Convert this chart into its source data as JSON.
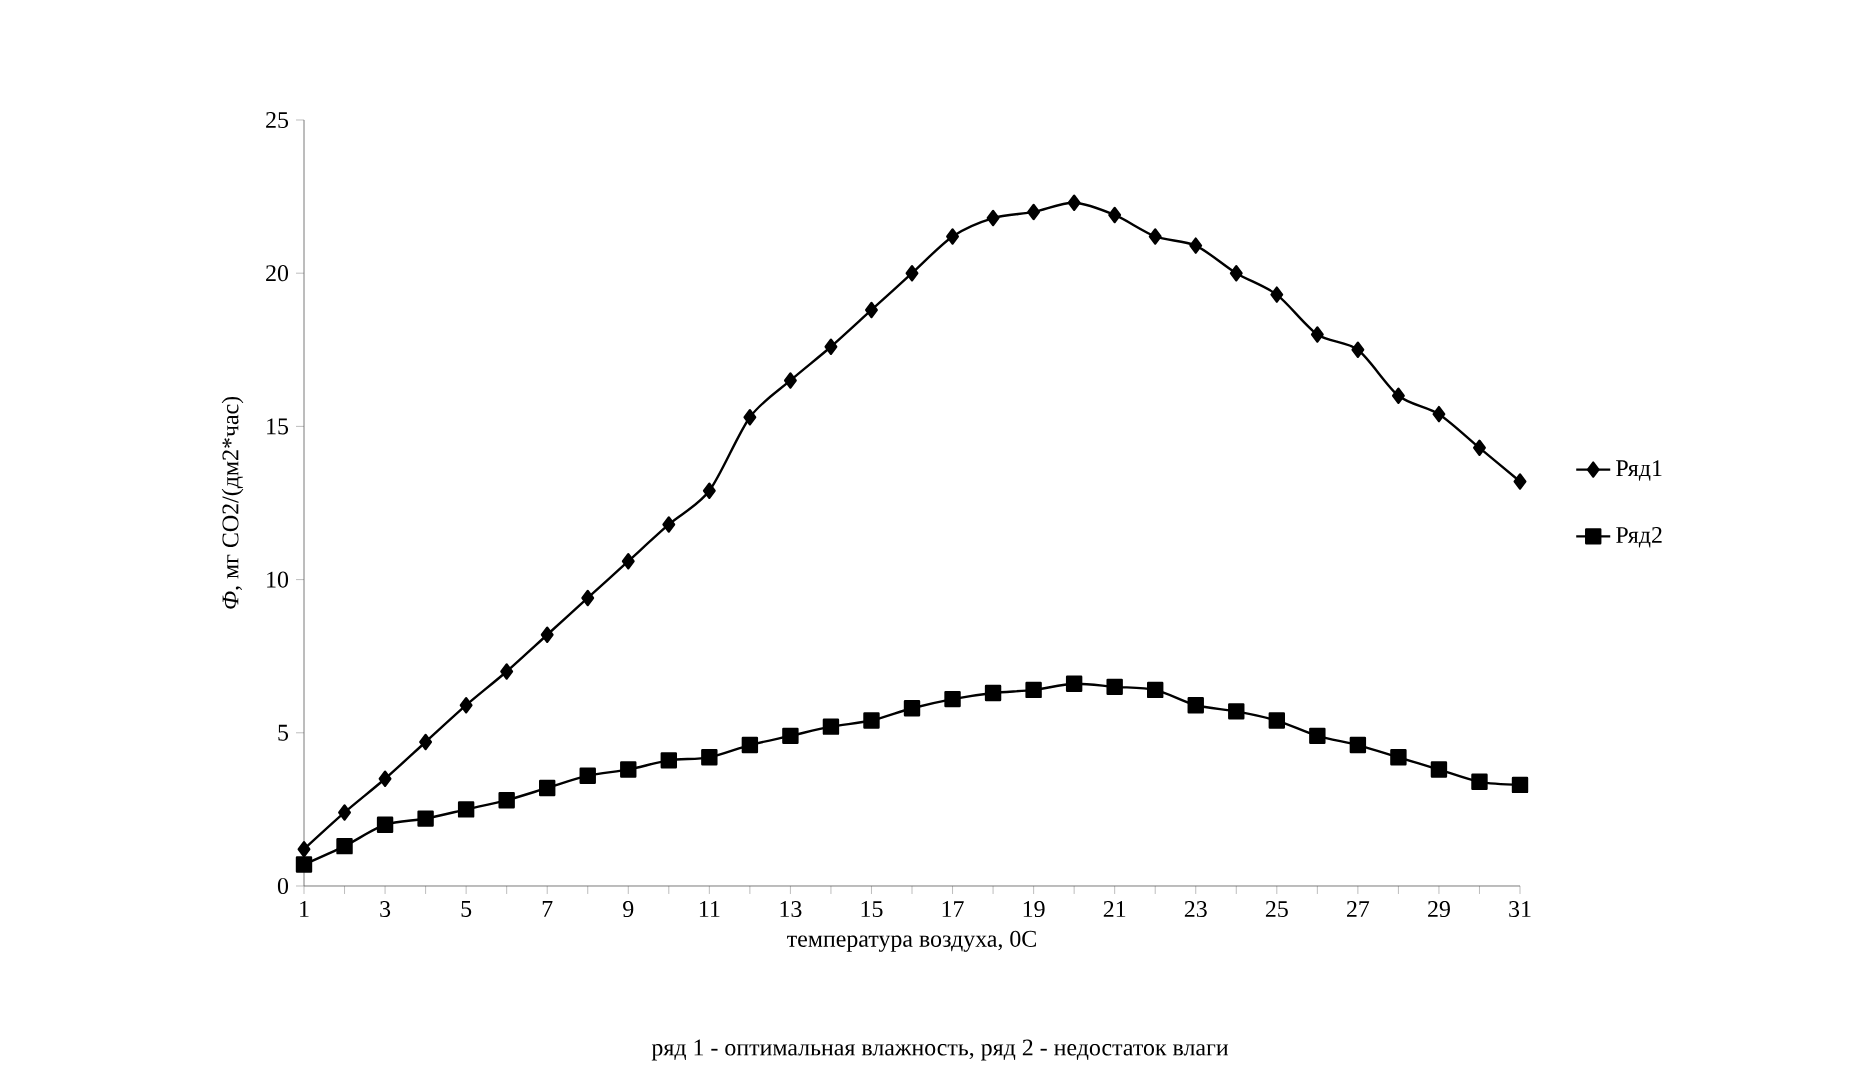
{
  "chart_data": {
    "type": "line",
    "categories": [
      "1",
      null,
      "3",
      null,
      "5",
      null,
      "7",
      null,
      "9",
      null,
      "11",
      null,
      "13",
      null,
      "15",
      null,
      "17",
      null,
      "19",
      null,
      "21",
      null,
      "23",
      null,
      "25",
      null,
      "27",
      null,
      "29",
      null,
      "31"
    ],
    "series": [
      {
        "name": "Ряд1",
        "color": "#000000",
        "marker": "diamond",
        "values": [
          1.2,
          2.4,
          3.5,
          4.7,
          5.9,
          7.0,
          8.2,
          9.4,
          10.6,
          11.8,
          12.9,
          15.3,
          16.5,
          17.6,
          18.8,
          20.0,
          21.2,
          21.8,
          22.0,
          22.3,
          21.9,
          21.2,
          20.9,
          20.0,
          19.3,
          18.0,
          17.5,
          16.0,
          15.4,
          14.3,
          13.2
        ]
      },
      {
        "name": "Ряд2",
        "color": "#000000",
        "marker": "square",
        "values": [
          0.7,
          1.3,
          2.0,
          2.2,
          2.5,
          2.8,
          3.2,
          3.6,
          3.8,
          4.1,
          4.2,
          4.6,
          4.9,
          5.2,
          5.4,
          5.8,
          6.1,
          6.3,
          6.4,
          6.6,
          6.5,
          6.4,
          5.9,
          5.7,
          5.4,
          4.9,
          4.6,
          4.2,
          3.8,
          3.4,
          3.3
        ]
      }
    ],
    "ylim": [
      0,
      25
    ],
    "yticks": [
      0,
      5,
      10,
      15,
      20,
      25
    ],
    "xlabel": "температура воздуха, 0С",
    "ylabel": "*Ф*, мг СО2/(дм2*час)",
    "annotations": [
      "ряд 1 - оптимальная влажность, ряд 2 - недостаток влаги"
    ],
    "legend": "right",
    "grid": false,
    "line_style": "solid"
  }
}
